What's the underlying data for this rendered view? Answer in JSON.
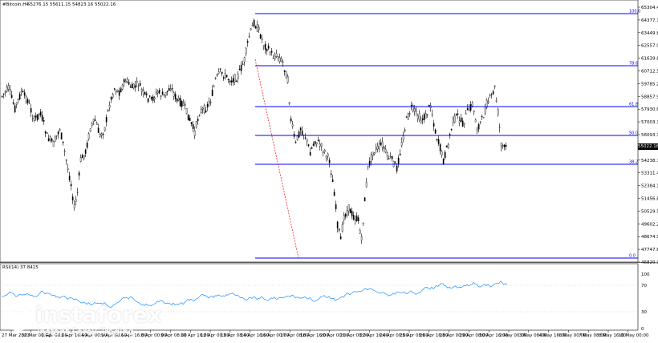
{
  "window": {
    "title": "#Bitcoin,H4",
    "ohlc": "55276.15 55611.15 54823.16 55022.16"
  },
  "price_axis": {
    "ticks": [
      "65304.40",
      "64377.10",
      "63449.80",
      "62557.00",
      "61639.80",
      "60712.50",
      "59785.20",
      "58857.90",
      "57930.60",
      "57003.30",
      "56093.30",
      "55166.00",
      "54238.70",
      "53311.40",
      "52384.10",
      "51456.80",
      "50529.50",
      "49602.20",
      "48674.90",
      "47747.60",
      "46820.30"
    ],
    "current_price": "55022.16"
  },
  "fib_levels": [
    "100.0",
    "78.6",
    "61.8",
    "50.0",
    "38.2",
    "0.0"
  ],
  "indicator": {
    "title": "RSI(14) 37.8415",
    "ticks": [
      "100",
      "70",
      "30",
      "0"
    ]
  },
  "time_axis": {
    "labels": [
      "27 Mar 2021",
      "30 Mar 00:00",
      "1 Apr 08:00",
      "2 Apr 16:00",
      "4 Apr 00:00",
      "5 Apr 08:00",
      "6 Apr 16:00",
      "8 Apr 00:00",
      "9 Apr 08:00",
      "10 Apr 16:00",
      "12 Apr 00:00",
      "13 Apr 08:00",
      "14 Apr 16:00",
      "16 Apr 00:00",
      "17 Apr 08:00",
      "18 Apr 16:00",
      "20 Apr 00:00",
      "21 Apr 08:00",
      "22 Apr 16:00",
      "24 Apr 00:00",
      "25 Apr 08:00",
      "26 Apr 16:00",
      "28 Apr 00:00",
      "29 Apr 08:00",
      "30 Apr 16:00",
      "2 May 00:00",
      "3 May 08:00",
      "4 May 16:00",
      "6 May 00:00",
      "7 May 08:00",
      "8 May 16:00",
      "10 May 00:00"
    ]
  },
  "watermark": {
    "brand": "instaforex",
    "tagline": "Instant Forex Trading"
  },
  "colors": {
    "background": "#ffffff",
    "candles": "#000000",
    "fib_lines": "#0000ff",
    "trend_line": "#ff0000",
    "rsi_line": "#1e90ff",
    "watermark": "#ffffff"
  }
}
